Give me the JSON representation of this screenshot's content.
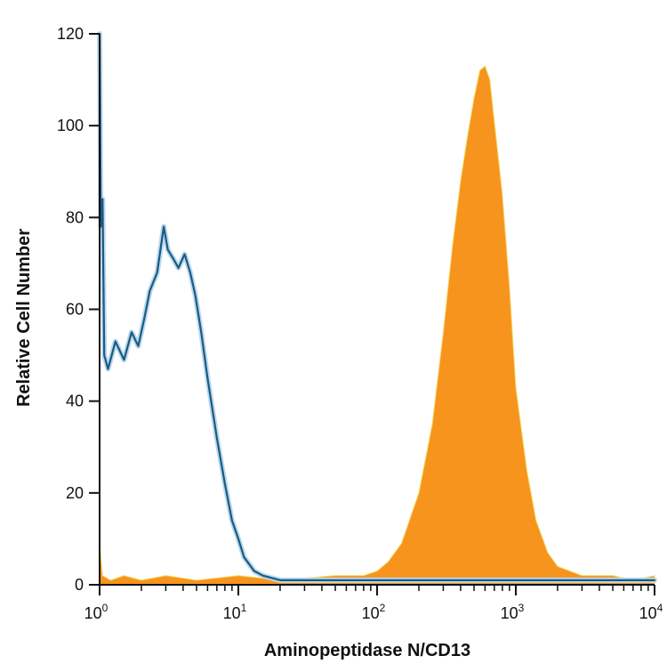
{
  "chart_data": {
    "type": "area",
    "title": "",
    "xlabel": "Aminopeptidase N/CD13",
    "ylabel": "Relative Cell Number",
    "xscale": "log",
    "xlim": [
      1,
      10000
    ],
    "ylim": [
      0,
      120
    ],
    "grid": false,
    "legend": "none",
    "x_ticks": [
      {
        "value": 1,
        "base": "10",
        "exp": "0"
      },
      {
        "value": 10,
        "base": "10",
        "exp": "1"
      },
      {
        "value": 100,
        "base": "10",
        "exp": "2"
      },
      {
        "value": 1000,
        "base": "10",
        "exp": "3"
      },
      {
        "value": 10000,
        "base": "10",
        "exp": "4"
      }
    ],
    "y_ticks": [
      {
        "value": 0,
        "label": "0"
      },
      {
        "value": 20,
        "label": "20"
      },
      {
        "value": 40,
        "label": "40"
      },
      {
        "value": 60,
        "label": "60"
      },
      {
        "value": 80,
        "label": "80"
      },
      {
        "value": 100,
        "label": "100"
      },
      {
        "value": 120,
        "label": "120"
      }
    ],
    "series": [
      {
        "kind": "filled",
        "color": "#f7941d",
        "edge_color": "#f3dc6a",
        "points": [
          [
            1.0,
            9
          ],
          [
            1.05,
            2
          ],
          [
            1.2,
            1
          ],
          [
            1.5,
            2
          ],
          [
            2.0,
            1
          ],
          [
            3.0,
            2
          ],
          [
            5.0,
            1
          ],
          [
            10.0,
            2
          ],
          [
            20.0,
            1
          ],
          [
            50.0,
            2
          ],
          [
            80.0,
            2
          ],
          [
            100.0,
            3
          ],
          [
            120.0,
            5
          ],
          [
            150.0,
            9
          ],
          [
            180.0,
            16
          ],
          [
            200.0,
            20
          ],
          [
            250.0,
            35
          ],
          [
            300.0,
            55
          ],
          [
            350.0,
            74
          ],
          [
            400.0,
            88
          ],
          [
            450.0,
            98
          ],
          [
            500.0,
            106
          ],
          [
            550.0,
            112
          ],
          [
            600.0,
            113
          ],
          [
            650.0,
            110
          ],
          [
            700.0,
            101
          ],
          [
            800.0,
            85
          ],
          [
            900.0,
            65
          ],
          [
            1000.0,
            43
          ],
          [
            1200.0,
            25
          ],
          [
            1400.0,
            14
          ],
          [
            1700.0,
            7
          ],
          [
            2000.0,
            4
          ],
          [
            3000.0,
            2
          ],
          [
            5000.0,
            2
          ],
          [
            7000.0,
            1
          ],
          [
            10000.0,
            2
          ]
        ]
      },
      {
        "kind": "outline",
        "color": "#1a5a85",
        "shadow_color": "#bcd9ec",
        "points": [
          [
            1.0,
            120
          ],
          [
            1.02,
            78
          ],
          [
            1.05,
            84
          ],
          [
            1.08,
            50
          ],
          [
            1.15,
            47
          ],
          [
            1.3,
            53
          ],
          [
            1.5,
            49
          ],
          [
            1.7,
            55
          ],
          [
            1.9,
            52
          ],
          [
            2.1,
            58
          ],
          [
            2.3,
            64
          ],
          [
            2.6,
            68
          ],
          [
            2.9,
            78
          ],
          [
            3.1,
            73
          ],
          [
            3.4,
            71
          ],
          [
            3.7,
            69
          ],
          [
            4.1,
            72
          ],
          [
            4.5,
            68
          ],
          [
            4.9,
            63
          ],
          [
            5.4,
            55
          ],
          [
            6.0,
            45
          ],
          [
            7.0,
            32
          ],
          [
            8.0,
            22
          ],
          [
            9.0,
            14
          ],
          [
            10.0,
            10
          ],
          [
            11.0,
            6
          ],
          [
            13.0,
            3
          ],
          [
            15.0,
            2
          ],
          [
            20.0,
            1
          ],
          [
            50.0,
            1
          ],
          [
            100.0,
            1
          ],
          [
            500.0,
            1
          ],
          [
            1000.0,
            1
          ],
          [
            5000.0,
            1
          ],
          [
            10000.0,
            1
          ]
        ]
      }
    ]
  }
}
